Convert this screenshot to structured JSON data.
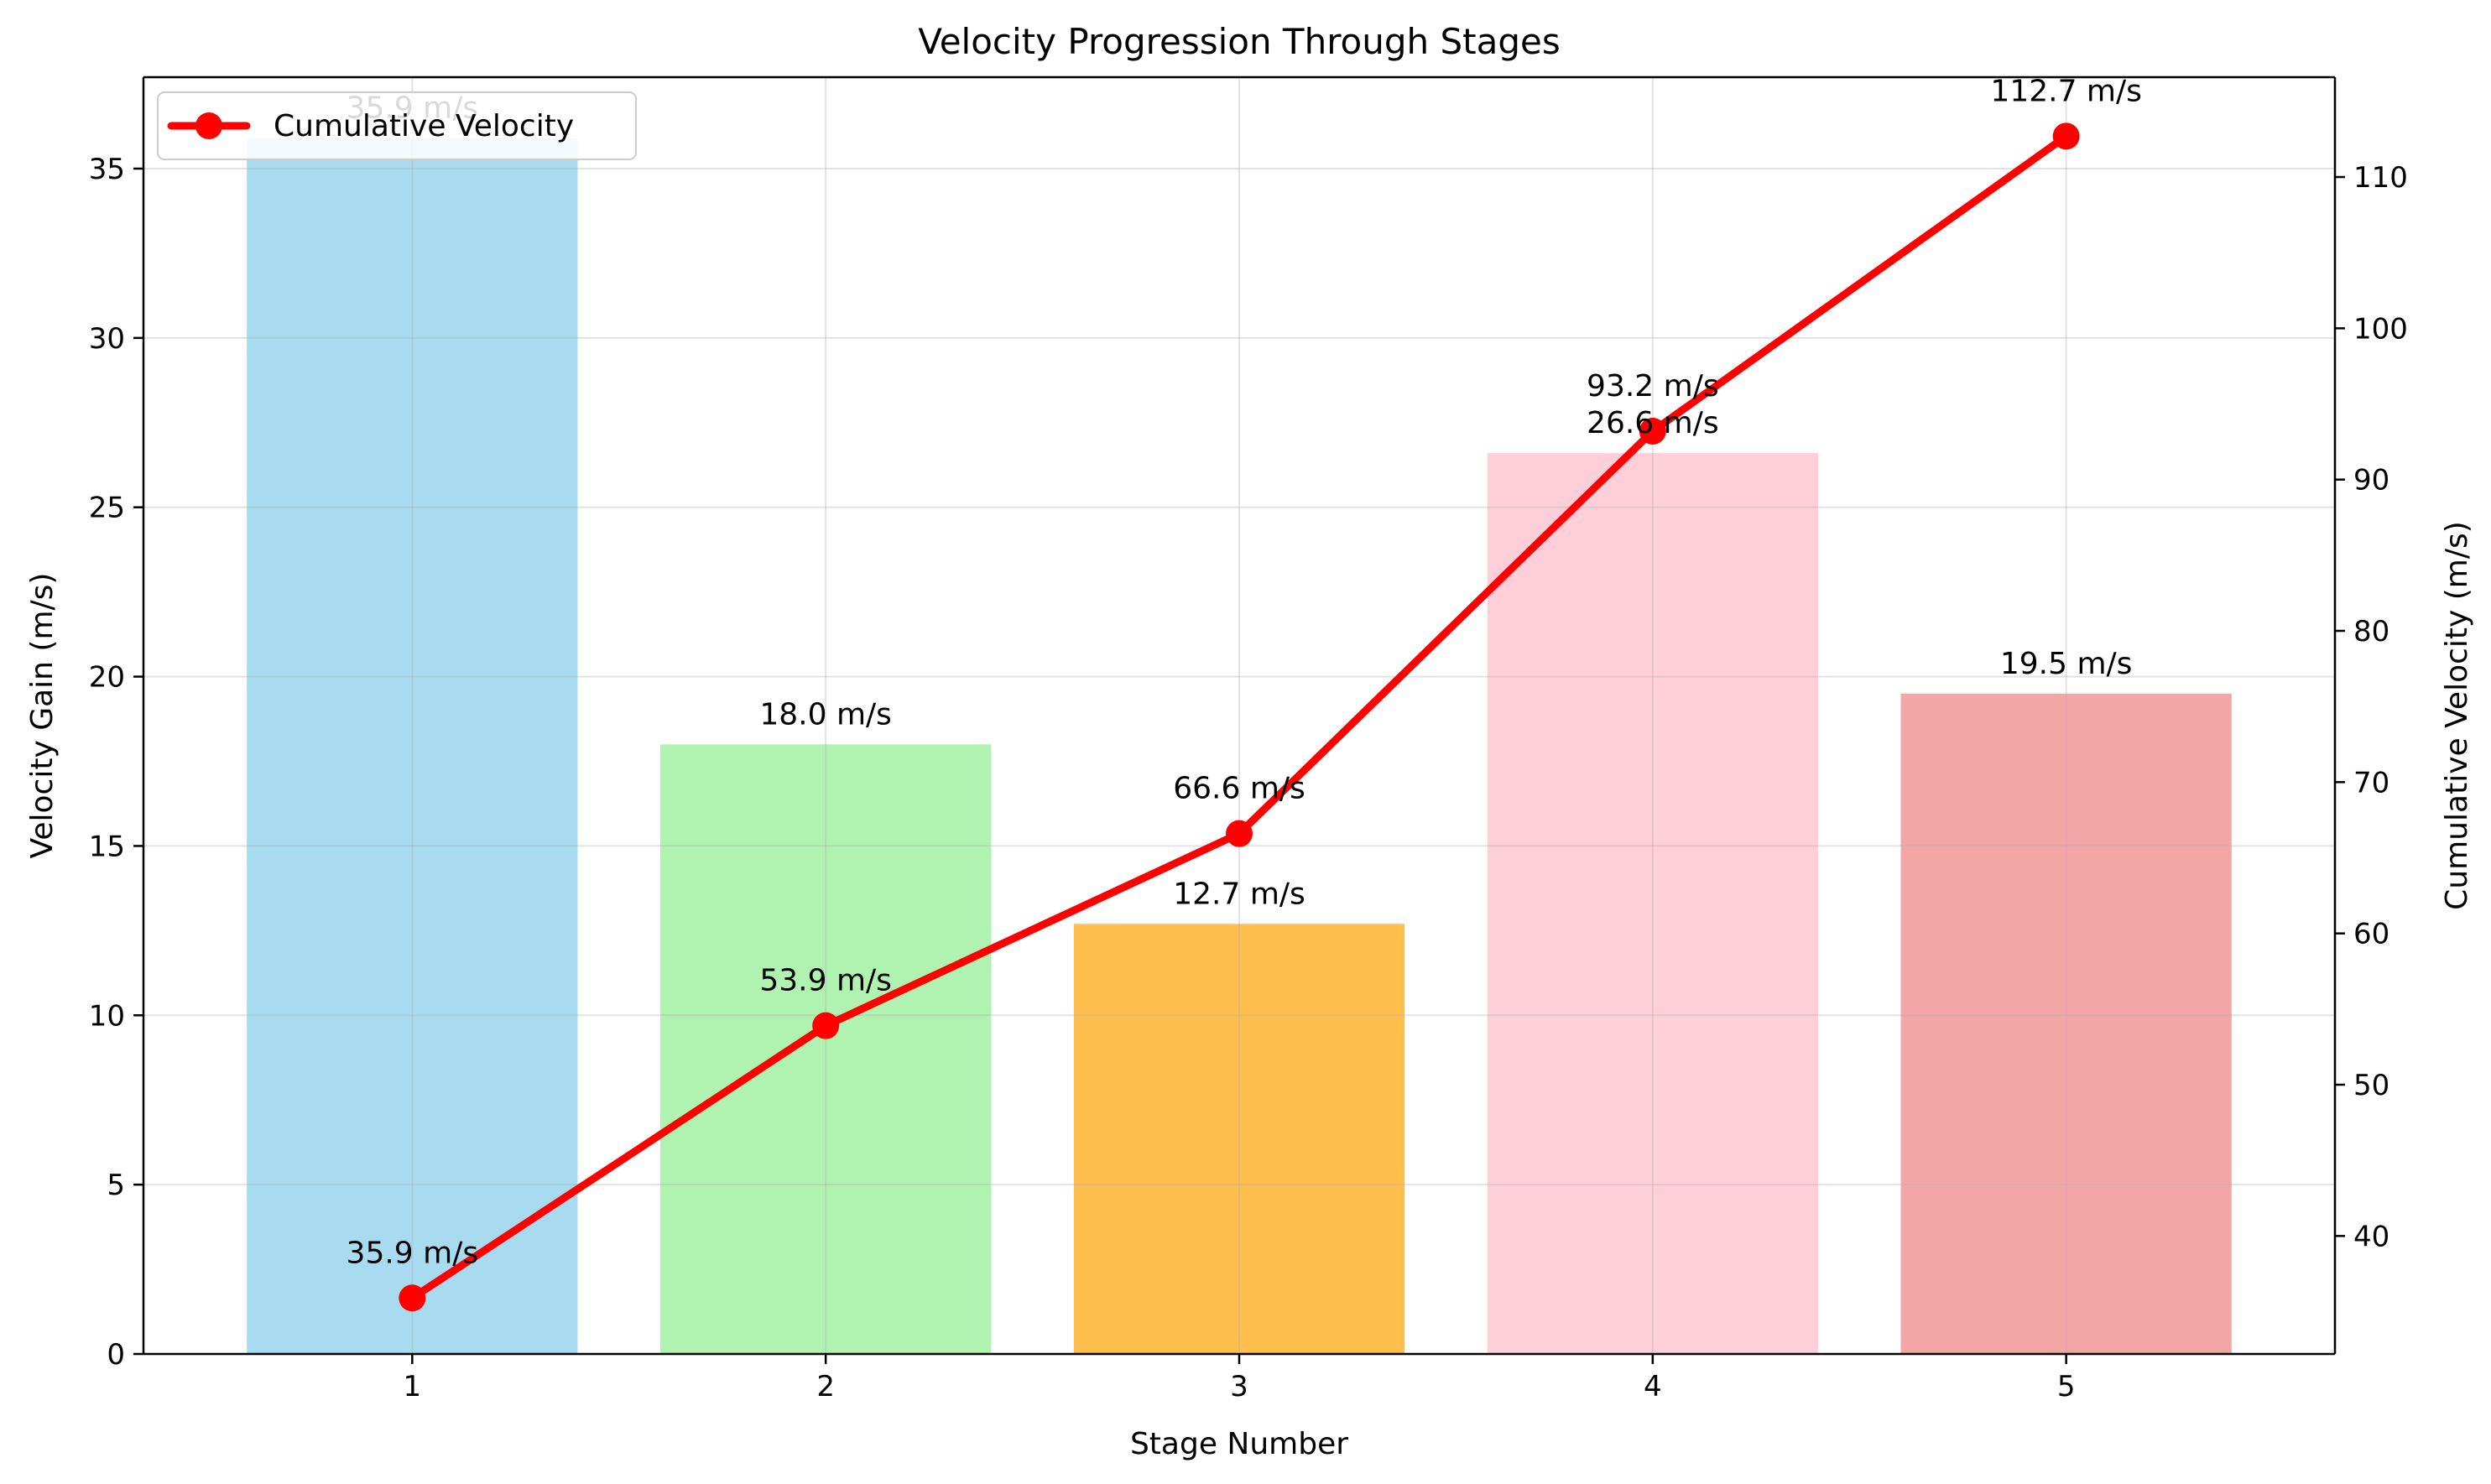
{
  "chart_data": {
    "type": "bar+line",
    "title": "Velocity Progression Through Stages",
    "xlabel": "Stage Number",
    "ylabel_left": "Velocity Gain (m/s)",
    "ylabel_right": "Cumulative Velocity (m/s)",
    "categories": [
      "1",
      "2",
      "3",
      "4",
      "5"
    ],
    "ylim_left": [
      0,
      37.7
    ],
    "ylim_right": [
      32.2,
      116.6
    ],
    "yticks_left": [
      0,
      5,
      10,
      15,
      20,
      25,
      30,
      35
    ],
    "yticks_right": [
      40,
      50,
      60,
      70,
      80,
      90,
      100,
      110
    ],
    "grid": true,
    "legend_placement": "top-left",
    "bars": {
      "values": [
        35.9,
        18.0,
        12.7,
        26.6,
        19.5
      ],
      "labels": [
        "35.9 m/s",
        "18.0 m/s",
        "12.7 m/s",
        "26.6 m/s",
        "19.5 m/s"
      ],
      "colors": [
        "#a8dbef",
        "#b0f3b0",
        "#ffbf4d",
        "#ffcfd9",
        "#f3a6a6"
      ]
    },
    "series": [
      {
        "name": "Cumulative Velocity",
        "values": [
          35.9,
          53.9,
          66.6,
          93.2,
          112.7
        ],
        "labels": [
          "35.9 m/s",
          "53.9 m/s",
          "66.6 m/s",
          "93.2 m/s",
          "112.7 m/s"
        ],
        "color": "#ff0000"
      }
    ]
  }
}
